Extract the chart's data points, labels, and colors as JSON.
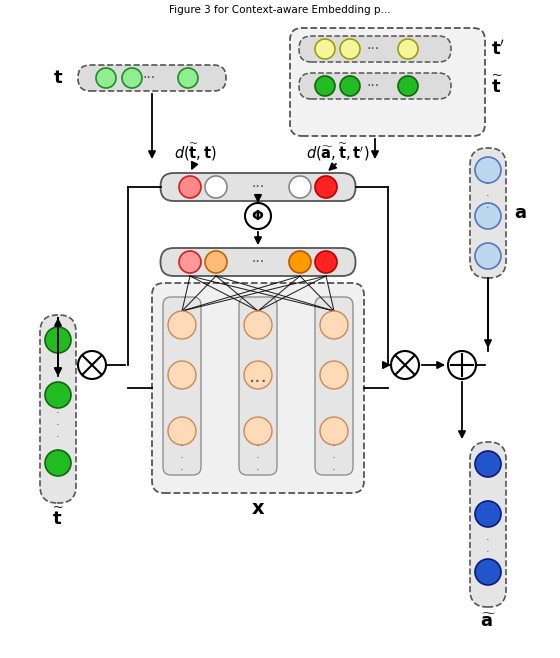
{
  "bg_color": "#ffffff",
  "light_green": "#90EE90",
  "green": "#22bb22",
  "yellow_circle": "#F5F59A",
  "peach": "#FFDAB9",
  "salmon": "#FF8080",
  "red": "#FF3333",
  "orange": "#FF9900",
  "light_orange": "#FFBB88",
  "light_blue": "#BDD7EE",
  "blue": "#2255CC",
  "white": "#FFFFFF",
  "gray_bg": "#E8E8E8",
  "light_gray_bg": "#F0F0F0",
  "dark_edge": "#444444"
}
